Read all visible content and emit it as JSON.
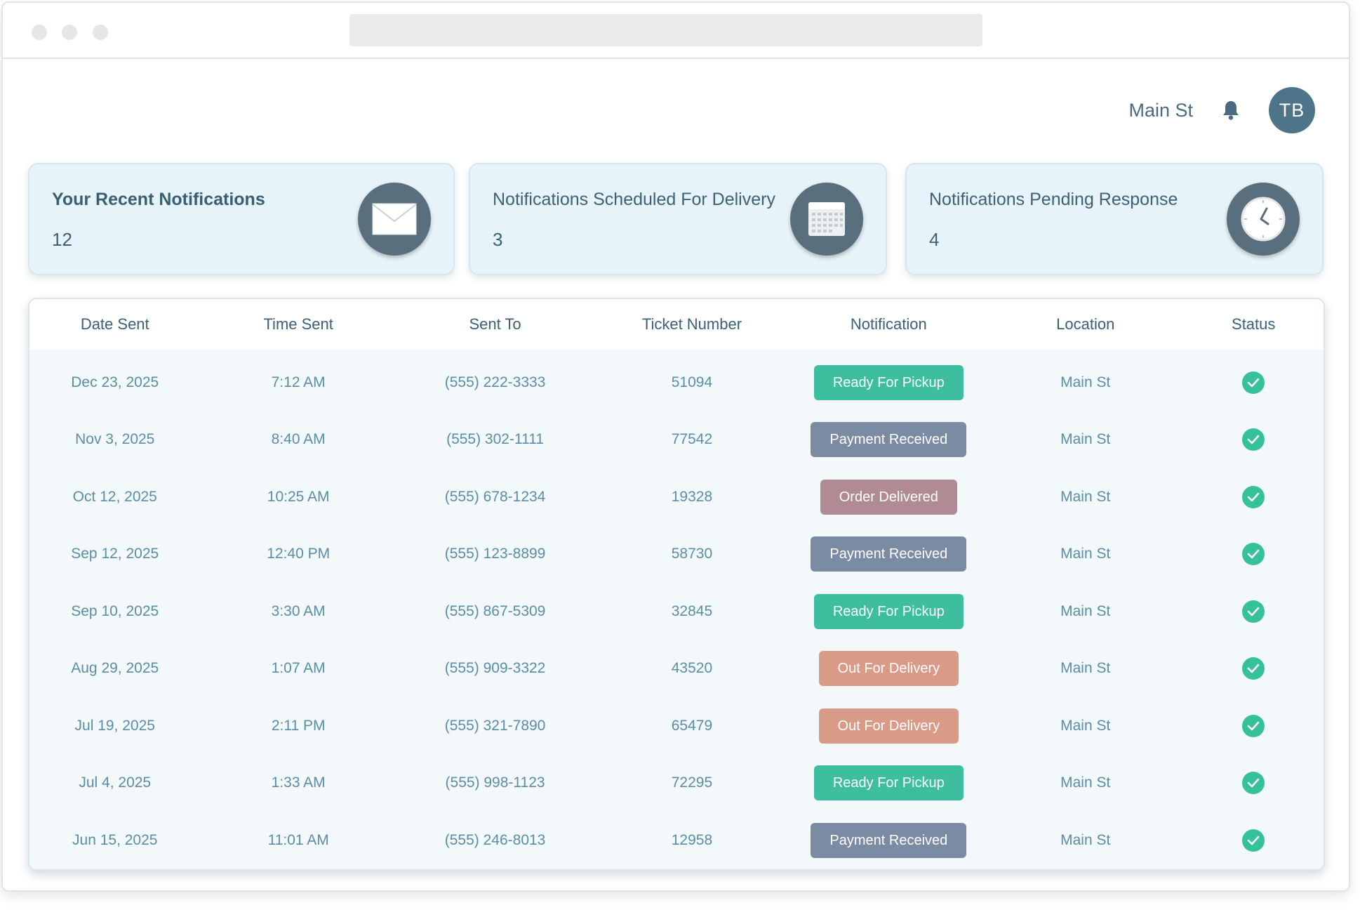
{
  "nav": {
    "location": "Main St",
    "avatar_initials": "TB"
  },
  "cards": [
    {
      "title": "Your Recent Notifications",
      "count": "12",
      "icon": "envelope-icon"
    },
    {
      "title": "Notifications Scheduled For Delivery",
      "count": "3",
      "icon": "calendar-icon"
    },
    {
      "title": "Notifications Pending Response",
      "count": "4",
      "icon": "clock-icon"
    }
  ],
  "table": {
    "headers": [
      "Date Sent",
      "Time Sent",
      "Sent To",
      "Ticket Number",
      "Notification",
      "Location",
      "Status"
    ],
    "rows": [
      {
        "date": "Dec 23, 2025",
        "time": "7:12 AM",
        "to": "(555) 222-3333",
        "ticket": "51094",
        "notification": "Ready For Pickup",
        "location": "Main St",
        "status": "check-icon"
      },
      {
        "date": "Nov 3, 2025",
        "time": "8:40 AM",
        "to": "(555) 302-1111",
        "ticket": "77542",
        "notification": "Payment Received",
        "location": "Main St",
        "status": "check-icon"
      },
      {
        "date": "Oct 12, 2025",
        "time": "10:25 AM",
        "to": "(555) 678-1234",
        "ticket": "19328",
        "notification": "Order Delivered",
        "location": "Main St",
        "status": "check-icon"
      },
      {
        "date": "Sep 12, 2025",
        "time": "12:40 PM",
        "to": "(555) 123-8899",
        "ticket": "58730",
        "notification": "Payment Received",
        "location": "Main St",
        "status": "check-icon"
      },
      {
        "date": "Sep 10, 2025",
        "time": "3:30 AM",
        "to": "(555) 867-5309",
        "ticket": "32845",
        "notification": "Ready For Pickup",
        "location": "Main St",
        "status": "check-icon"
      },
      {
        "date": "Aug 29, 2025",
        "time": "1:07 AM",
        "to": "(555) 909-3322",
        "ticket": "43520",
        "notification": "Out For Delivery",
        "location": "Main St",
        "status": "check-icon"
      },
      {
        "date": "Jul 19, 2025",
        "time": "2:11 PM",
        "to": "(555) 321-7890",
        "ticket": "65479",
        "notification": "Out For Delivery",
        "location": "Main St",
        "status": "check-icon"
      },
      {
        "date": "Jul 4, 2025",
        "time": "1:33 AM",
        "to": "(555) 998-1123",
        "ticket": "72295",
        "notification": "Ready For Pickup",
        "location": "Main St",
        "status": "check-icon"
      },
      {
        "date": "Jun 15, 2025",
        "time": "11:01 AM",
        "to": "(555) 246-8013",
        "ticket": "12958",
        "notification": "Payment Received",
        "location": "Main St",
        "status": "check-icon"
      }
    ]
  },
  "colors": {
    "ready_for_pickup": "#3dbf9f",
    "payment_received": "#7c8ba4",
    "order_delivered": "#b08b93",
    "out_for_delivery": "#d99a88",
    "status_check": "#35c29b",
    "avatar": "#4d7488"
  }
}
